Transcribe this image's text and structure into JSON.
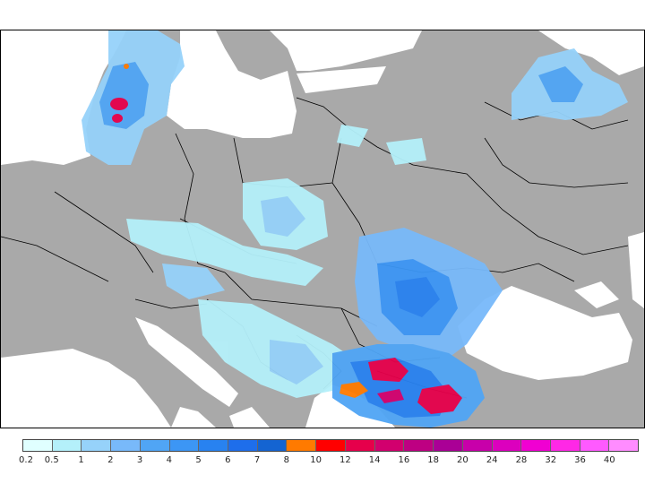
{
  "map": {
    "colors": {
      "sea": "#ffffff",
      "land": "#a9a9a9",
      "border": "#000000"
    }
  },
  "legend": {
    "labels": [
      "0.2",
      "0.5",
      "1",
      "2",
      "3",
      "4",
      "5",
      "6",
      "7",
      "8",
      "10",
      "12",
      "14",
      "16",
      "18",
      "20",
      "24",
      "28",
      "32",
      "36",
      "40"
    ],
    "colors": [
      "#e0ffff",
      "#b4f0fa",
      "#96d2fa",
      "#78b9fa",
      "#50a5f5",
      "#3c96f5",
      "#2882f0",
      "#1e6eeb",
      "#1464d2",
      "#ff7a00",
      "#ff0000",
      "#e6004b",
      "#d2006e",
      "#be0082",
      "#aa0096",
      "#c800aa",
      "#dc00be",
      "#f000d2",
      "#ff28e6",
      "#ff5aff",
      "#ff8cff"
    ]
  }
}
